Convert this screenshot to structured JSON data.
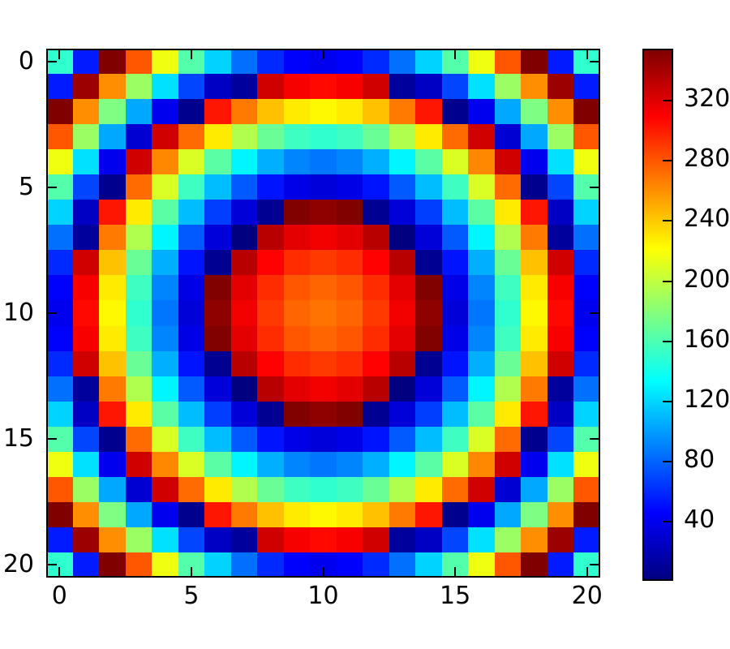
{
  "figure": {
    "background": "#ffffff",
    "frame_color": "#000000"
  },
  "chart_data": {
    "type": "heatmap",
    "title": "",
    "xlabel": "",
    "ylabel": "",
    "colormap": "jet",
    "grid_size": [
      21,
      21
    ],
    "x_ticks": [
      "0",
      "5",
      "10",
      "15",
      "20"
    ],
    "x_tick_positions": [
      0,
      5,
      10,
      15,
      20
    ],
    "y_ticks": [
      "0",
      "5",
      "10",
      "15",
      "20"
    ],
    "y_tick_positions": [
      0,
      5,
      10,
      15,
      20
    ],
    "colorbar_ticks": [
      "40",
      "80",
      "120",
      "160",
      "200",
      "240",
      "280",
      "320"
    ],
    "colorbar_tick_values": [
      40,
      80,
      120,
      160,
      200,
      240,
      280,
      320
    ],
    "legend_position": "colorbar-right",
    "grid_lines": false,
    "values": [
      [
        150,
        55,
        353.7,
        280.1,
        216.4,
        162.5,
        118.4,
        84.1,
        59.6,
        44.9,
        40,
        44.9,
        59.6,
        84.1,
        118.4,
        162.5,
        216.4,
        280.1,
        353.7,
        55,
        150
      ],
      [
        55,
        343.8,
        260.5,
        187,
        123.3,
        69.4,
        25.3,
        11.5,
        326.5,
        311.8,
        306.9,
        311.8,
        326.5,
        11.5,
        25.3,
        69.4,
        123.3,
        187,
        260.5,
        343.8,
        55
      ],
      [
        353.7,
        260.5,
        177.2,
        103.7,
        40,
        6.5,
        302,
        267.7,
        243.2,
        228.5,
        223.6,
        228.5,
        243.2,
        267.7,
        302,
        6.5,
        40,
        103.7,
        177.2,
        260.5,
        353.7
      ],
      [
        280.1,
        187,
        103.7,
        30.2,
        326.5,
        272.6,
        228.5,
        194.2,
        169.7,
        155,
        150.1,
        155,
        169.7,
        194.2,
        228.5,
        272.6,
        326.5,
        30.2,
        103.7,
        187,
        280.1
      ],
      [
        216.4,
        123.3,
        40,
        326.5,
        262.8,
        208.9,
        164.8,
        130.5,
        106,
        91.3,
        86.4,
        91.3,
        106,
        130.5,
        164.8,
        208.9,
        262.8,
        326.5,
        40,
        123.3,
        216.4
      ],
      [
        162.5,
        69.4,
        6.5,
        272.6,
        208.9,
        155,
        110.9,
        76.6,
        52.1,
        37.4,
        32.5,
        37.4,
        52.1,
        76.6,
        110.9,
        155,
        208.9,
        272.6,
        6.5,
        69.4,
        162.5
      ],
      [
        118.4,
        25.3,
        302,
        228.5,
        164.8,
        110.9,
        66.8,
        32.5,
        8,
        353.3,
        348.4,
        353.3,
        8,
        32.5,
        66.8,
        110.9,
        164.8,
        228.5,
        302,
        25.3,
        118.4
      ],
      [
        84.1,
        11.5,
        267.7,
        194.2,
        130.5,
        76.6,
        32.5,
        1.5,
        333.7,
        319,
        314.1,
        319,
        333.7,
        1.5,
        32.5,
        76.6,
        130.5,
        194.2,
        267.7,
        11.5,
        84.1
      ],
      [
        59.6,
        326.5,
        243.2,
        169.7,
        106,
        52.1,
        8,
        333.7,
        309.2,
        294.5,
        289.6,
        294.5,
        309.2,
        333.7,
        8,
        52.1,
        106,
        169.7,
        243.2,
        326.5,
        59.6
      ],
      [
        44.9,
        311.8,
        228.5,
        155,
        91.3,
        37.4,
        353.3,
        319,
        294.5,
        279.8,
        274.9,
        279.8,
        294.5,
        319,
        353.3,
        37.4,
        91.3,
        155,
        228.5,
        311.8,
        44.9
      ],
      [
        40,
        306.9,
        223.6,
        150.1,
        86.4,
        32.5,
        348.4,
        314.1,
        289.6,
        274.9,
        270,
        274.9,
        289.6,
        314.1,
        348.4,
        32.5,
        86.4,
        150.1,
        223.6,
        306.9,
        40
      ],
      [
        44.9,
        311.8,
        228.5,
        155,
        91.3,
        37.4,
        353.3,
        319,
        294.5,
        279.8,
        274.9,
        279.8,
        294.5,
        319,
        353.3,
        37.4,
        91.3,
        155,
        228.5,
        311.8,
        44.9
      ],
      [
        59.6,
        326.5,
        243.2,
        169.7,
        106,
        52.1,
        8,
        333.7,
        309.2,
        294.5,
        289.6,
        294.5,
        309.2,
        333.7,
        8,
        52.1,
        106,
        169.7,
        243.2,
        326.5,
        59.6
      ],
      [
        84.1,
        11.5,
        267.7,
        194.2,
        130.5,
        76.6,
        32.5,
        1.5,
        333.7,
        319,
        314.1,
        319,
        333.7,
        1.5,
        32.5,
        76.6,
        130.5,
        194.2,
        267.7,
        11.5,
        84.1
      ],
      [
        118.4,
        25.3,
        302,
        228.5,
        164.8,
        110.9,
        66.8,
        32.5,
        8,
        353.3,
        348.4,
        353.3,
        8,
        32.5,
        66.8,
        110.9,
        164.8,
        228.5,
        302,
        25.3,
        118.4
      ],
      [
        162.5,
        69.4,
        6.5,
        272.6,
        208.9,
        155,
        110.9,
        76.6,
        52.1,
        37.4,
        32.5,
        37.4,
        52.1,
        76.6,
        110.9,
        155,
        208.9,
        272.6,
        6.5,
        69.4,
        162.5
      ],
      [
        216.4,
        123.3,
        40,
        326.5,
        262.8,
        208.9,
        164.8,
        130.5,
        106,
        91.3,
        86.4,
        91.3,
        106,
        130.5,
        164.8,
        208.9,
        262.8,
        326.5,
        40,
        123.3,
        216.4
      ],
      [
        280.1,
        187,
        103.7,
        30.2,
        326.5,
        272.6,
        228.5,
        194.2,
        169.7,
        155,
        150.1,
        155,
        169.7,
        194.2,
        228.5,
        272.6,
        326.5,
        30.2,
        103.7,
        187,
        280.1
      ],
      [
        353.7,
        260.5,
        177.2,
        103.7,
        40,
        6.5,
        302,
        267.7,
        243.2,
        228.5,
        223.6,
        228.5,
        243.2,
        267.7,
        302,
        6.5,
        40,
        103.7,
        177.2,
        260.5,
        353.7
      ],
      [
        55,
        343.8,
        260.5,
        187,
        123.3,
        69.4,
        25.3,
        11.5,
        326.5,
        311.8,
        306.9,
        311.8,
        326.5,
        11.5,
        25.3,
        69.4,
        123.3,
        187,
        260.5,
        343.8,
        55
      ],
      [
        150,
        55,
        353.7,
        280.1,
        216.4,
        162.5,
        118.4,
        84.1,
        59.6,
        44.9,
        40,
        44.9,
        59.6,
        84.1,
        118.4,
        162.5,
        216.4,
        280.1,
        353.7,
        55,
        150
      ]
    ]
  }
}
